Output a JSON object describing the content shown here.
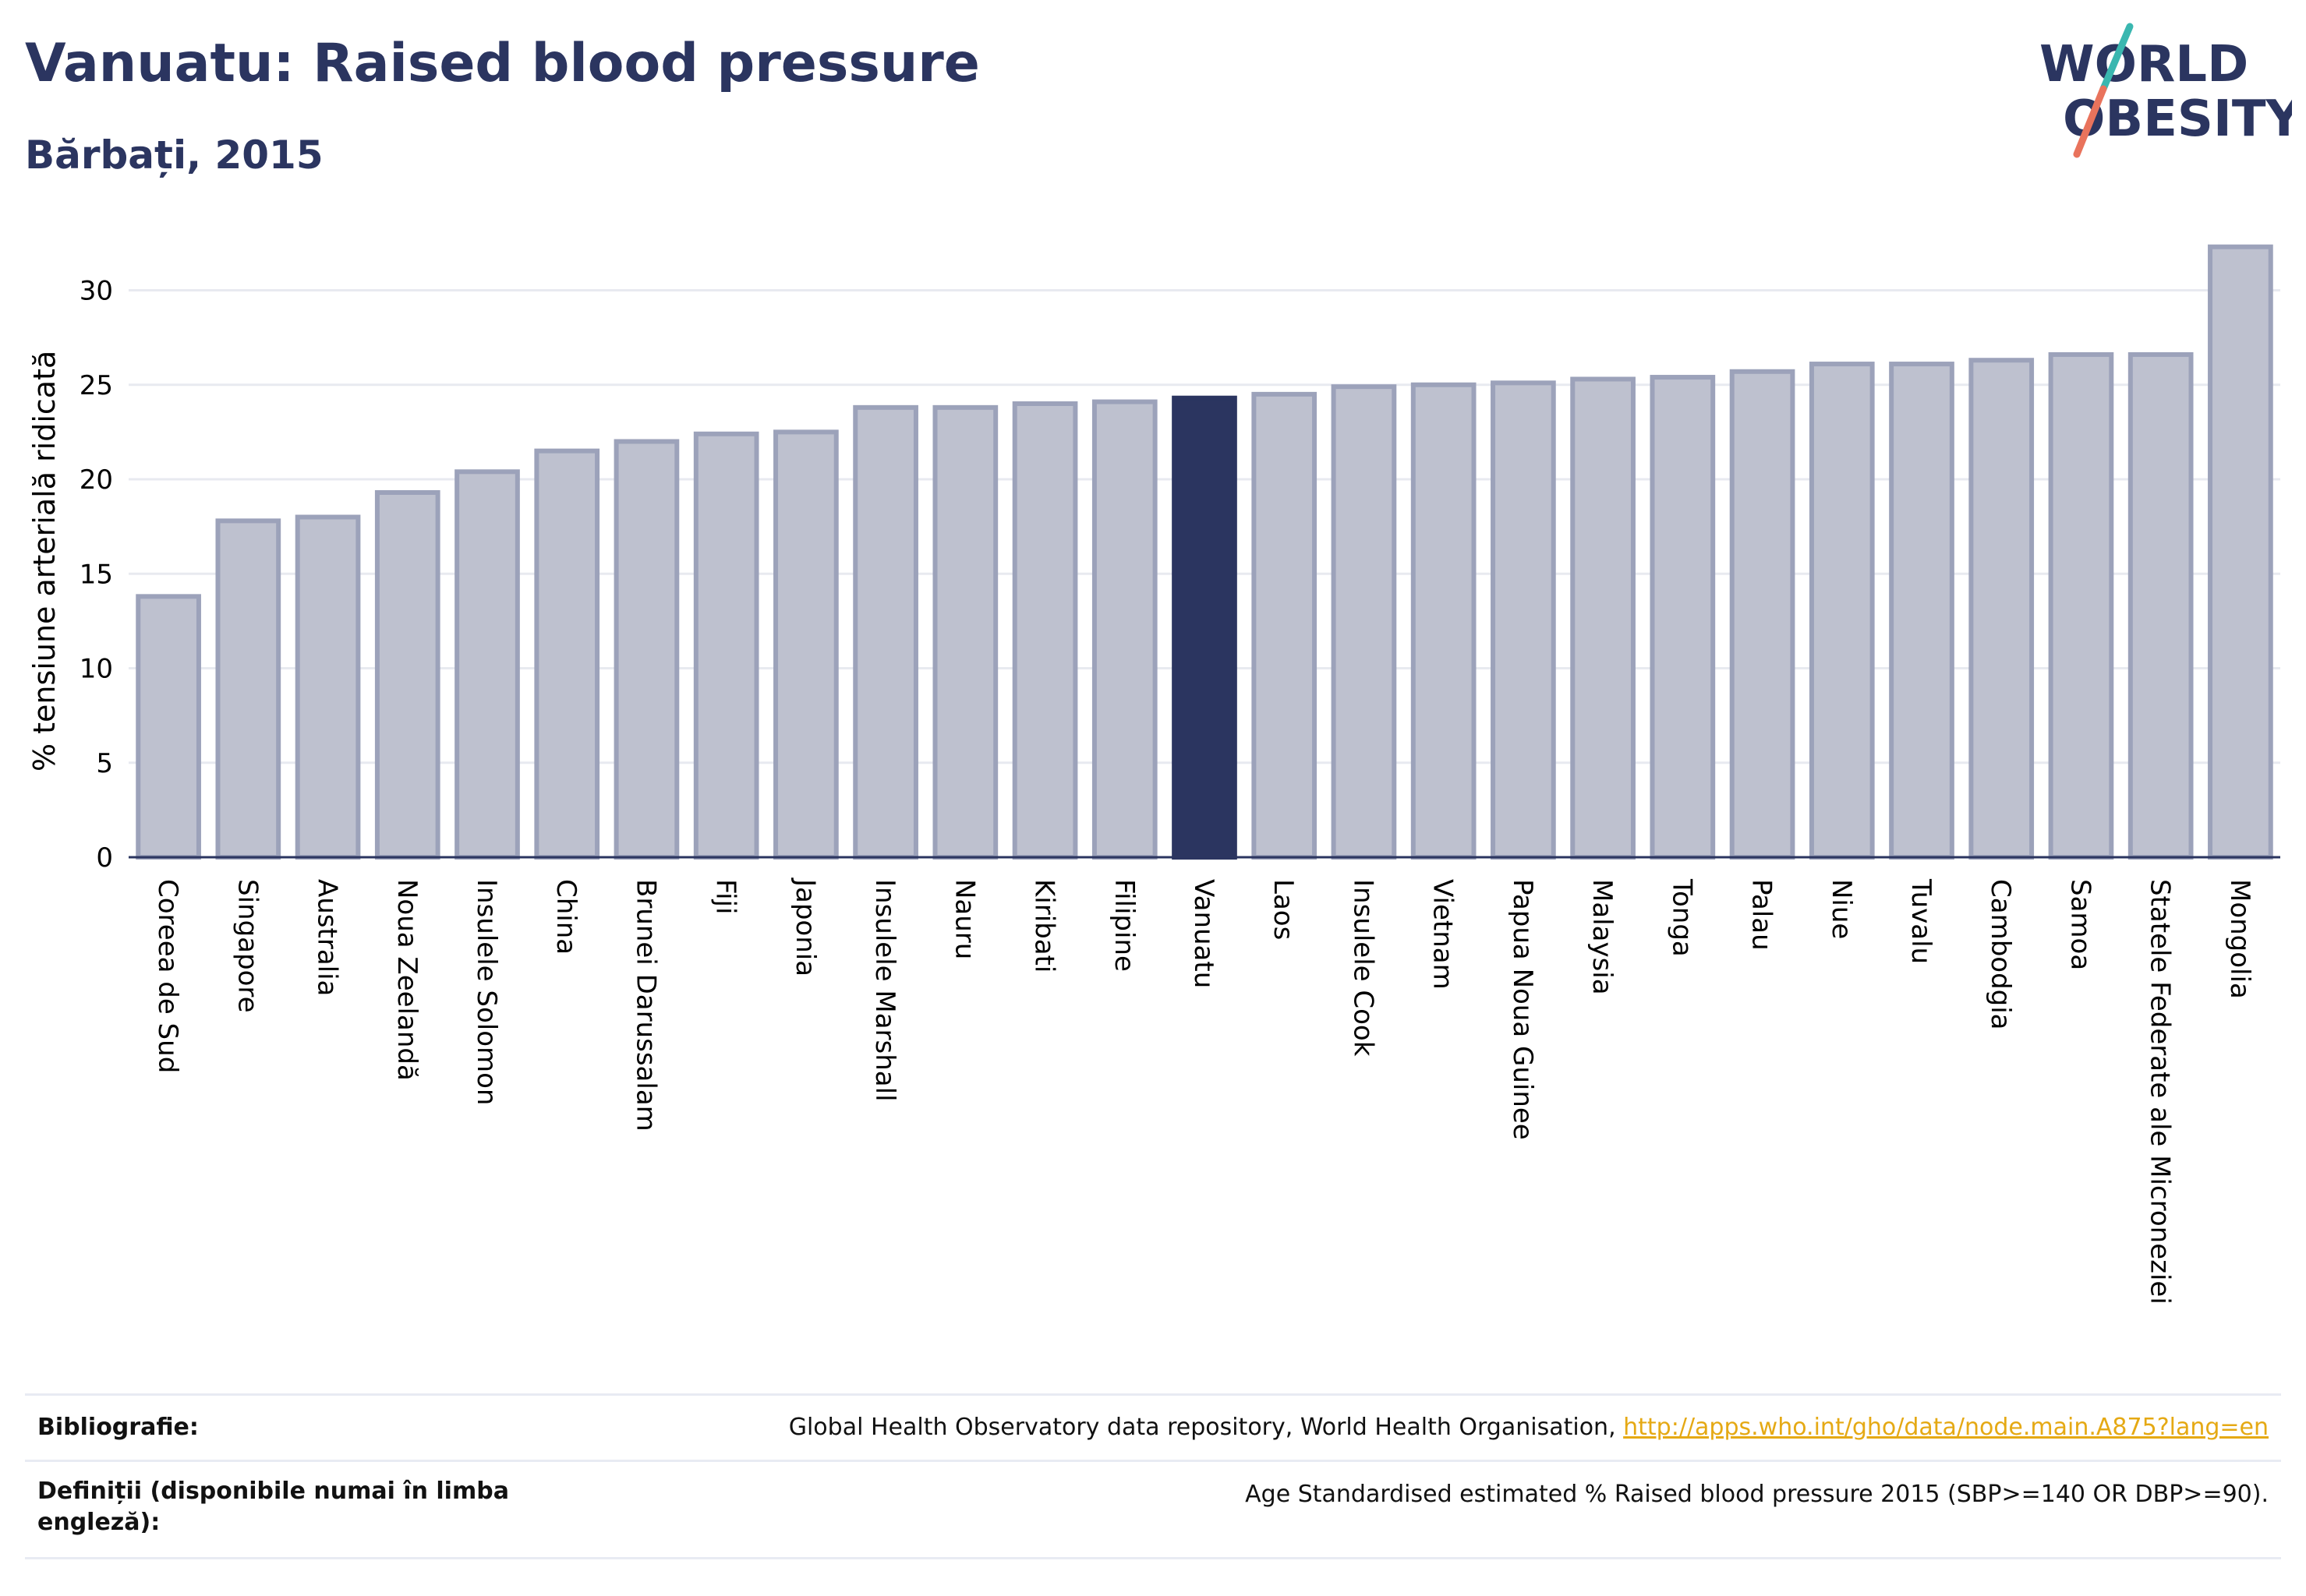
{
  "header": {
    "title": "Vanuatu: Raised blood pressure",
    "subtitle": "Bărbați, 2015"
  },
  "logo": {
    "line1": "WORLD",
    "line2": "OBESITY",
    "colors": {
      "text": "#2b3560",
      "slash_top": "#3ab7b0",
      "slash_bottom": "#e9735c"
    }
  },
  "colors": {
    "bar_fill": "#bec1cf",
    "bar_stroke": "#9ca2ba",
    "highlight_fill": "#2b3560",
    "grid": "#e8eaf0",
    "axis": "#2b3560"
  },
  "chart_data": {
    "type": "bar",
    "ylabel": "% tensiune arterială ridicată",
    "ylim": [
      0,
      33
    ],
    "yticks": [
      0,
      5,
      10,
      15,
      20,
      25,
      30
    ],
    "grid": true,
    "highlight": "Vanuatu",
    "categories": [
      "Coreea de Sud",
      "Singapore",
      "Australia",
      "Noua Zeelandă",
      "Insulele Solomon",
      "China",
      "Brunei Darussalam",
      "Fiji",
      "Japonia",
      "Insulele Marshall",
      "Nauru",
      "Kiribati",
      "Filipine",
      "Vanuatu",
      "Laos",
      "Insulele Cook",
      "Vietnam",
      "Papua Noua Guinee",
      "Malaysia",
      "Tonga",
      "Palau",
      "Niue",
      "Tuvalu",
      "Cambodgia",
      "Samoa",
      "Statele Federate ale Microneziei",
      "Mongolia"
    ],
    "values": [
      13.8,
      17.8,
      18.0,
      19.3,
      20.4,
      21.5,
      22.0,
      22.4,
      22.5,
      23.8,
      23.8,
      24.0,
      24.1,
      24.3,
      24.5,
      24.9,
      25.0,
      25.1,
      25.3,
      25.4,
      25.7,
      26.1,
      26.1,
      26.3,
      26.6,
      26.6,
      32.3
    ]
  },
  "footer": {
    "bibliography_label": "Bibliografie:",
    "bibliography_text": "Global Health Observatory data repository, World Health Organisation, ",
    "bibliography_link": "http://apps.who.int/gho/data/node.main.A875?lang=en",
    "definitions_label": "Definiții (disponibile numai în limba engleză):",
    "definitions_text": "Age Standardised estimated % Raised blood pressure 2015 (SBP>=140 OR DBP>=90)."
  }
}
